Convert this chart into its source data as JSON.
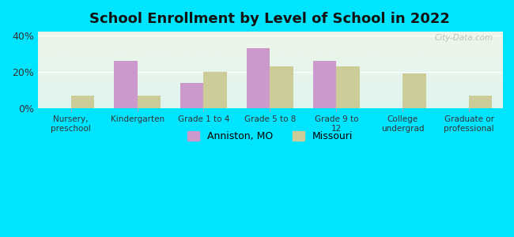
{
  "title": "School Enrollment by Level of School in 2022",
  "categories": [
    "Nursery,\npreschool",
    "Kindergarten",
    "Grade 1 to 4",
    "Grade 5 to 8",
    "Grade 9 to\n12",
    "College\nundergrad",
    "Graduate or\nprofessional"
  ],
  "anniston_values": [
    0,
    26,
    14,
    33,
    26,
    0,
    0
  ],
  "missouri_values": [
    7,
    7,
    20,
    23,
    23,
    19,
    7
  ],
  "anniston_color": "#cc99cc",
  "missouri_color": "#cccc99",
  "background_outer": "#00e5ff",
  "background_inner_top": "#eef5e8",
  "background_inner_bottom": "#e0f5f0",
  "ylim": [
    0,
    42
  ],
  "yticks": [
    0,
    20,
    40
  ],
  "ytick_labels": [
    "0%",
    "20%",
    "40%"
  ],
  "bar_width": 0.35,
  "legend_labels": [
    "Anniston, MO",
    "Missouri"
  ],
  "watermark": "City-Data.com"
}
